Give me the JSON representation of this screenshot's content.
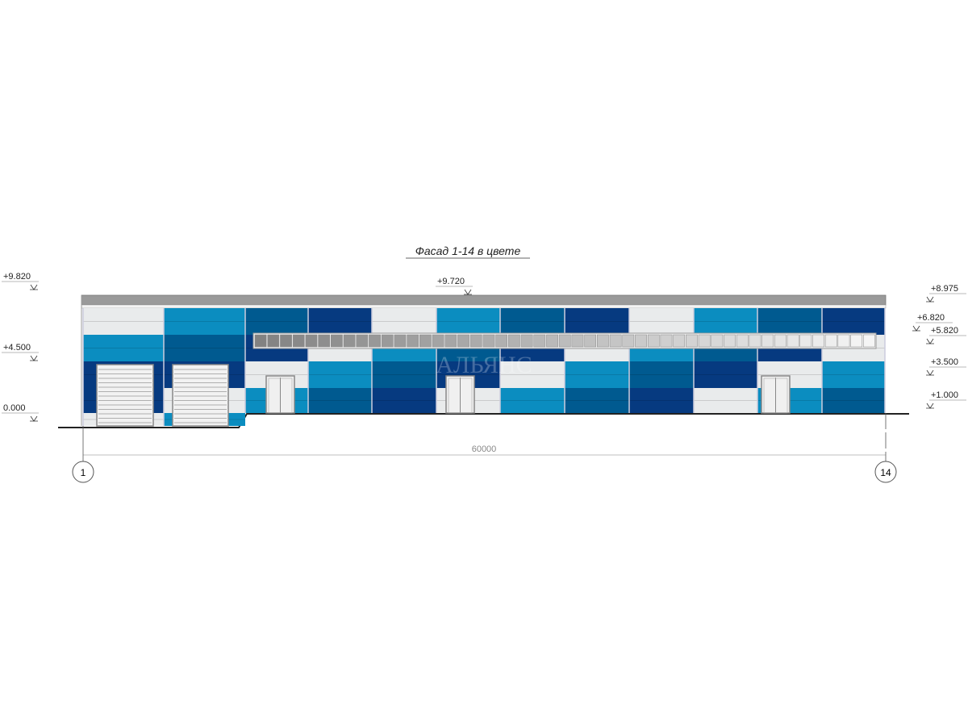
{
  "title": "Фасад 1-14 в цвете",
  "levels_left": [
    "+9.820",
    "+4.500",
    "0.000"
  ],
  "level_top_center": "+9.720",
  "levels_right": [
    "+8.975",
    "+6.820",
    "+5.820",
    "+3.500",
    "+1.000"
  ],
  "dimension": "60000",
  "axes": [
    "1",
    "14"
  ],
  "watermark": "АЛЬЯНС",
  "palette": {
    "L": "#e9ebec",
    "C": "#0b8dc0",
    "M": "#005a90",
    "D": "#063a80",
    "roof": "#9a9a9a"
  },
  "facade_columns": [
    [
      "L",
      "C",
      "D",
      "D",
      "L"
    ],
    [
      "C",
      "M",
      "D",
      "L",
      "C"
    ],
    [
      "M",
      "D",
      "L",
      "C"
    ],
    [
      "D",
      "L",
      "C",
      "M"
    ],
    [
      "L",
      "C",
      "M",
      "D"
    ],
    [
      "C",
      "M",
      "D",
      "L"
    ],
    [
      "M",
      "D",
      "L",
      "C"
    ],
    [
      "D",
      "L",
      "C",
      "M"
    ],
    [
      "L",
      "C",
      "M",
      "D"
    ],
    [
      "C",
      "M",
      "D",
      "L"
    ],
    [
      "M",
      "D",
      "L",
      "C"
    ],
    [
      "D",
      "L",
      "C",
      "M"
    ]
  ]
}
